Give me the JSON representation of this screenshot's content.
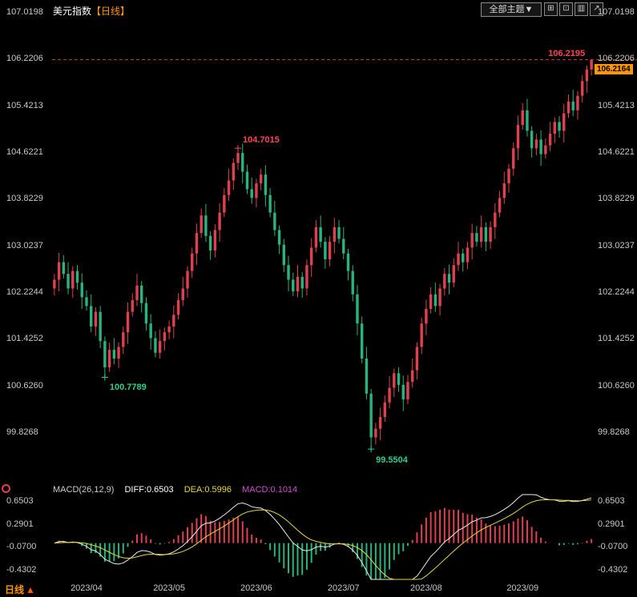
{
  "header": {
    "title": "美元指数",
    "period_tag": "【日线】",
    "theme_dropdown": "全部主题▼",
    "toolbar_buttons": [
      {
        "name": "layout-grid-icon",
        "glyph": "⊞"
      },
      {
        "name": "layout-single-icon",
        "glyph": "⊡"
      },
      {
        "name": "layout-rows-icon",
        "glyph": "▥"
      },
      {
        "name": "expand-icon",
        "glyph": "↗"
      }
    ]
  },
  "indicator_row": {
    "name": "MACD(26,12,9)",
    "diff": "DIFF:0.6503",
    "dea": "DEA:0.5996",
    "macd": "MACD:0.1014"
  },
  "footer": {
    "period_label": "日线",
    "up_triangle": "▲"
  },
  "colors": {
    "background": "#000000",
    "up": "#e0414f",
    "down": "#28b47c",
    "axis_text": "#c8c8c8",
    "title": "#ffffff",
    "period_tag": "#ff9500",
    "annotation_up": "#ff4455",
    "annotation_down": "#2fd08c",
    "dashed_line": "#c0452f",
    "price_tag": "#ff9500",
    "diff_line": "#ebebeb",
    "dea_line": "#e6d838",
    "macd_value": "#d24dd2"
  },
  "chart_data": {
    "type": "candlestick",
    "title": "美元指数 日线",
    "grid": false,
    "y_axis": {
      "mirrored_left_right": true,
      "ticks": [
        "107.0198",
        "106.2206",
        "105.4213",
        "104.6221",
        "103.8229",
        "103.0237",
        "102.2244",
        "101.4252",
        "100.6260",
        "99.8268"
      ],
      "range": [
        99.8268,
        107.0198
      ]
    },
    "x_axis": {
      "labels": [
        "2023/04",
        "2023/05",
        "2023/06",
        "2023/07",
        "2023/08",
        "2023/09"
      ],
      "label_indices": [
        7,
        25,
        44,
        63,
        81,
        102
      ]
    },
    "last_price": 106.2164,
    "last_price_label": "106.2164",
    "annotations": [
      {
        "text": "106.2195",
        "index": 117,
        "price": 106.2195,
        "color": "#ff4455",
        "align": "left",
        "dy": -13,
        "marker": false
      },
      {
        "text": "104.7015",
        "index": 40,
        "price": 104.7015,
        "color": "#ff4455",
        "align": "right",
        "dy": -16,
        "marker": true
      },
      {
        "text": "100.7789",
        "index": 11,
        "price": 100.7789,
        "color": "#2fd08c",
        "align": "right",
        "dy": 6,
        "marker": true
      },
      {
        "text": "99.5504",
        "index": 69,
        "price": 99.5504,
        "color": "#2fd08c",
        "align": "right",
        "dy": 8,
        "marker": true
      }
    ],
    "candles": [
      [
        102.3,
        102.55,
        102.18,
        102.45
      ],
      [
        102.45,
        102.91,
        102.25,
        102.75
      ],
      [
        102.75,
        102.87,
        102.47,
        102.55
      ],
      [
        102.55,
        102.75,
        102.2,
        102.3
      ],
      [
        102.3,
        102.68,
        102.14,
        102.6
      ],
      [
        102.6,
        102.7,
        102.28,
        102.4
      ],
      [
        102.4,
        102.56,
        101.95,
        102.15
      ],
      [
        102.15,
        102.27,
        101.92,
        102.0
      ],
      [
        102.0,
        102.2,
        101.55,
        101.65
      ],
      [
        101.65,
        101.98,
        101.49,
        101.9
      ],
      [
        101.9,
        102.0,
        101.28,
        101.4
      ],
      [
        101.4,
        101.48,
        100.7789,
        100.95
      ],
      [
        100.95,
        101.37,
        100.87,
        101.25
      ],
      [
        101.25,
        101.45,
        101.0,
        101.1
      ],
      [
        101.1,
        101.38,
        100.94,
        101.3
      ],
      [
        101.3,
        101.65,
        101.18,
        101.55
      ],
      [
        101.55,
        102.06,
        101.35,
        101.9
      ],
      [
        101.9,
        102.22,
        101.82,
        102.1
      ],
      [
        102.1,
        102.55,
        102.0,
        102.35
      ],
      [
        102.35,
        102.43,
        101.89,
        102.05
      ],
      [
        102.05,
        102.15,
        101.58,
        101.7
      ],
      [
        101.7,
        101.86,
        101.25,
        101.45
      ],
      [
        101.45,
        101.57,
        101.12,
        101.2
      ],
      [
        101.2,
        101.6,
        101.1,
        101.4
      ],
      [
        101.4,
        101.63,
        101.24,
        101.55
      ],
      [
        101.55,
        101.75,
        101.43,
        101.65
      ],
      [
        101.65,
        102.01,
        101.45,
        101.85
      ],
      [
        101.85,
        102.22,
        101.77,
        102.1
      ],
      [
        102.1,
        102.5,
        102.0,
        102.3
      ],
      [
        102.3,
        102.68,
        102.14,
        102.6
      ],
      [
        102.6,
        103.0,
        102.48,
        102.9
      ],
      [
        102.9,
        103.41,
        102.7,
        103.25
      ],
      [
        103.25,
        103.67,
        103.17,
        103.55
      ],
      [
        103.55,
        103.75,
        103.1,
        103.2
      ],
      [
        103.2,
        103.28,
        102.79,
        102.95
      ],
      [
        102.95,
        103.4,
        102.83,
        103.3
      ],
      [
        103.3,
        103.76,
        103.1,
        103.6
      ],
      [
        103.6,
        104.02,
        103.52,
        103.9
      ],
      [
        103.9,
        104.35,
        103.8,
        104.15
      ],
      [
        104.15,
        104.53,
        103.99,
        104.45
      ],
      [
        104.45,
        104.7015,
        104.33,
        104.62
      ],
      [
        104.62,
        104.78,
        104.1,
        104.3
      ],
      [
        104.3,
        104.42,
        103.92,
        104.0
      ],
      [
        104.0,
        104.2,
        103.75,
        103.85
      ],
      [
        103.85,
        104.18,
        103.69,
        104.1
      ],
      [
        104.1,
        104.35,
        103.98,
        104.25
      ],
      [
        104.25,
        104.41,
        103.7,
        103.9
      ],
      [
        103.9,
        104.02,
        103.52,
        103.6
      ],
      [
        103.6,
        103.8,
        103.2,
        103.3
      ],
      [
        103.3,
        103.38,
        102.89,
        103.05
      ],
      [
        103.05,
        103.15,
        102.58,
        102.7
      ],
      [
        102.7,
        102.86,
        102.25,
        102.45
      ],
      [
        102.45,
        102.57,
        102.17,
        102.25
      ],
      [
        102.25,
        102.7,
        102.15,
        102.5
      ],
      [
        102.5,
        102.58,
        102.14,
        102.3
      ],
      [
        102.3,
        102.8,
        102.18,
        102.7
      ],
      [
        102.7,
        103.16,
        102.5,
        103.0
      ],
      [
        103.0,
        103.47,
        102.92,
        103.35
      ],
      [
        103.35,
        103.55,
        103.0,
        103.1
      ],
      [
        103.1,
        103.18,
        102.64,
        102.8
      ],
      [
        102.8,
        103.2,
        102.68,
        103.1
      ],
      [
        103.1,
        103.51,
        102.9,
        103.35
      ],
      [
        103.35,
        103.47,
        103.07,
        103.15
      ],
      [
        103.15,
        103.35,
        102.8,
        102.9
      ],
      [
        102.9,
        102.98,
        102.44,
        102.6
      ],
      [
        102.6,
        102.7,
        102.08,
        102.2
      ],
      [
        102.2,
        102.36,
        101.5,
        101.7
      ],
      [
        101.7,
        101.82,
        101.02,
        101.1
      ],
      [
        101.1,
        101.3,
        100.4,
        100.5
      ],
      [
        100.5,
        100.58,
        99.5504,
        99.75
      ],
      [
        99.75,
        100.0,
        99.63,
        99.9
      ],
      [
        99.9,
        100.26,
        99.7,
        100.1
      ],
      [
        100.1,
        100.47,
        100.02,
        100.35
      ],
      [
        100.35,
        100.8,
        100.25,
        100.6
      ],
      [
        100.6,
        100.93,
        100.44,
        100.85
      ],
      [
        100.85,
        100.95,
        100.53,
        100.65
      ],
      [
        100.65,
        100.81,
        100.2,
        100.4
      ],
      [
        100.4,
        100.82,
        100.32,
        100.7
      ],
      [
        100.7,
        101.1,
        100.6,
        100.9
      ],
      [
        100.9,
        101.38,
        100.74,
        101.3
      ],
      [
        101.3,
        101.8,
        101.18,
        101.7
      ],
      [
        101.7,
        102.11,
        101.5,
        101.95
      ],
      [
        101.95,
        102.32,
        101.87,
        102.2
      ],
      [
        102.2,
        102.4,
        101.9,
        102.0
      ],
      [
        102.0,
        102.38,
        101.84,
        102.3
      ],
      [
        102.3,
        102.65,
        102.18,
        102.55
      ],
      [
        102.55,
        102.71,
        102.2,
        102.4
      ],
      [
        102.4,
        102.82,
        102.32,
        102.7
      ],
      [
        102.7,
        103.1,
        102.6,
        102.9
      ],
      [
        102.9,
        102.98,
        102.59,
        102.75
      ],
      [
        102.75,
        103.1,
        102.63,
        103.0
      ],
      [
        103.0,
        103.41,
        102.8,
        103.25
      ],
      [
        103.25,
        103.37,
        103.02,
        103.1
      ],
      [
        103.1,
        103.55,
        103.0,
        103.35
      ],
      [
        103.35,
        103.43,
        102.94,
        103.1
      ],
      [
        103.1,
        103.45,
        102.98,
        103.35
      ],
      [
        103.35,
        103.76,
        103.15,
        103.6
      ],
      [
        103.6,
        103.97,
        103.52,
        103.85
      ],
      [
        103.85,
        104.3,
        103.75,
        104.1
      ],
      [
        104.1,
        104.43,
        103.94,
        104.35
      ],
      [
        104.35,
        104.8,
        104.23,
        104.7
      ],
      [
        104.7,
        105.26,
        104.5,
        105.1
      ],
      [
        105.1,
        105.47,
        105.02,
        105.35
      ],
      [
        105.35,
        105.55,
        104.9,
        105.0
      ],
      [
        105.0,
        105.08,
        104.54,
        104.7
      ],
      [
        104.7,
        104.95,
        104.58,
        104.85
      ],
      [
        104.85,
        105.01,
        104.4,
        104.6
      ],
      [
        104.6,
        104.87,
        104.52,
        104.75
      ],
      [
        104.75,
        105.15,
        104.65,
        104.95
      ],
      [
        104.95,
        105.23,
        104.79,
        105.15
      ],
      [
        105.15,
        105.25,
        104.88,
        105.0
      ],
      [
        105.0,
        105.46,
        104.8,
        105.3
      ],
      [
        105.3,
        105.62,
        105.22,
        105.5
      ],
      [
        105.5,
        105.7,
        105.25,
        105.35
      ],
      [
        105.35,
        105.68,
        105.19,
        105.6
      ],
      [
        105.6,
        105.95,
        105.48,
        105.85
      ],
      [
        105.85,
        106.12,
        105.65,
        106.05
      ],
      [
        106.05,
        106.2195,
        105.95,
        106.2164
      ]
    ],
    "indicator": {
      "type": "MACD",
      "params": [
        26,
        12,
        9
      ],
      "diff": 0.6503,
      "dea": 0.5996,
      "macd": 0.1014,
      "y_ticks": [
        "0.6503",
        "0.2901",
        "-0.0700",
        "-0.4302"
      ],
      "note": "histogram = 2*(DIFF-DEA), DIFF=EMA12-EMA26 of closes, DEA=EMA9 of DIFF"
    }
  }
}
